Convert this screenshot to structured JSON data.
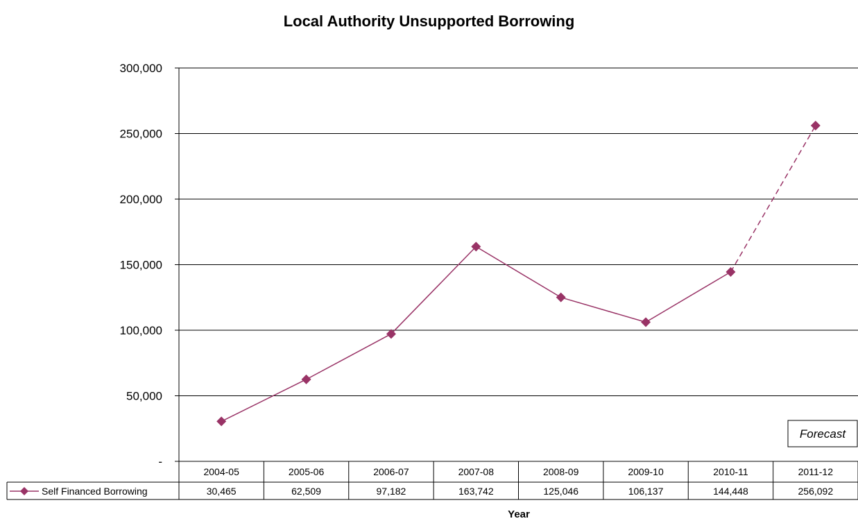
{
  "chart_data": {
    "type": "line",
    "title": "Local Authority Unsupported Borrowing",
    "xlabel": "Year",
    "ylabel": "",
    "categories": [
      "2004-05",
      "2005-06",
      "2006-07",
      "2007-08",
      "2008-09",
      "2009-10",
      "2010-11",
      "2011-12"
    ],
    "series": [
      {
        "name": "Self Financed Borrowing",
        "values": [
          30465,
          62509,
          97182,
          163742,
          125046,
          106137,
          144448,
          256092
        ],
        "value_labels": [
          "30,465",
          "62,509",
          "97,182",
          "163,742",
          "125,046",
          "106,137",
          "144,448",
          "256,092"
        ],
        "color": "#993366",
        "marker": "diamond",
        "forecast_from_index": 6
      }
    ],
    "ylim": [
      0,
      300000
    ],
    "yticks": [
      0,
      50000,
      100000,
      150000,
      200000,
      250000,
      300000
    ],
    "ytick_labels": [
      "-",
      "50,000",
      "100,000",
      "150,000",
      "200,000",
      "250,000",
      "300,000"
    ],
    "grid": true,
    "legend": "data-table-left",
    "annotations": [
      {
        "text": "Forecast",
        "position": "bottom-right"
      }
    ]
  }
}
